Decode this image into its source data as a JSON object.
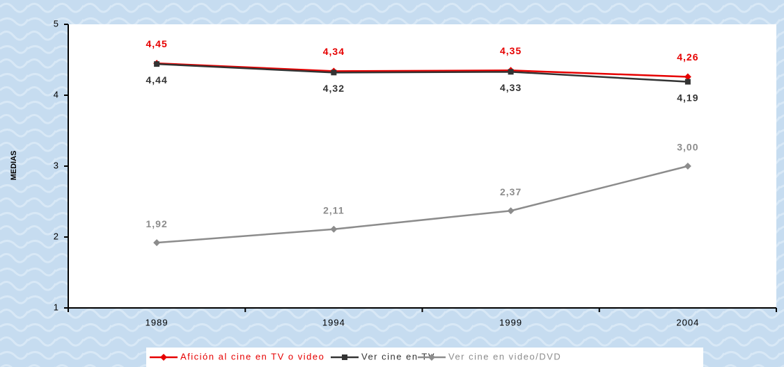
{
  "chart_data": {
    "type": "line",
    "y_label": "MEDIAS",
    "categories": [
      "1989",
      "1994",
      "1999",
      "2004"
    ],
    "series": [
      {
        "name": "Afición al cine en TV o video",
        "color": "#e60000",
        "marker": "diamond",
        "values": [
          4.45,
          4.34,
          4.35,
          4.26
        ],
        "value_labels": [
          "4,45",
          "4,34",
          "4,35",
          "4,26"
        ]
      },
      {
        "name": "Ver cine en TV",
        "color": "#333333",
        "marker": "square",
        "values": [
          4.44,
          4.32,
          4.33,
          4.19
        ],
        "value_labels": [
          "4,44",
          "4,32",
          "4,33",
          "4,19"
        ]
      },
      {
        "name": "Ver cine en video/DVD",
        "color": "#8c8c8c",
        "marker": "diamond",
        "values": [
          1.92,
          2.11,
          2.37,
          3.0
        ],
        "value_labels": [
          "1,92",
          "2,11",
          "2,37",
          "3,00"
        ]
      }
    ],
    "ylim": [
      1,
      5
    ],
    "yticks": [
      1,
      2,
      3,
      4,
      5
    ],
    "legend": "bottom"
  }
}
